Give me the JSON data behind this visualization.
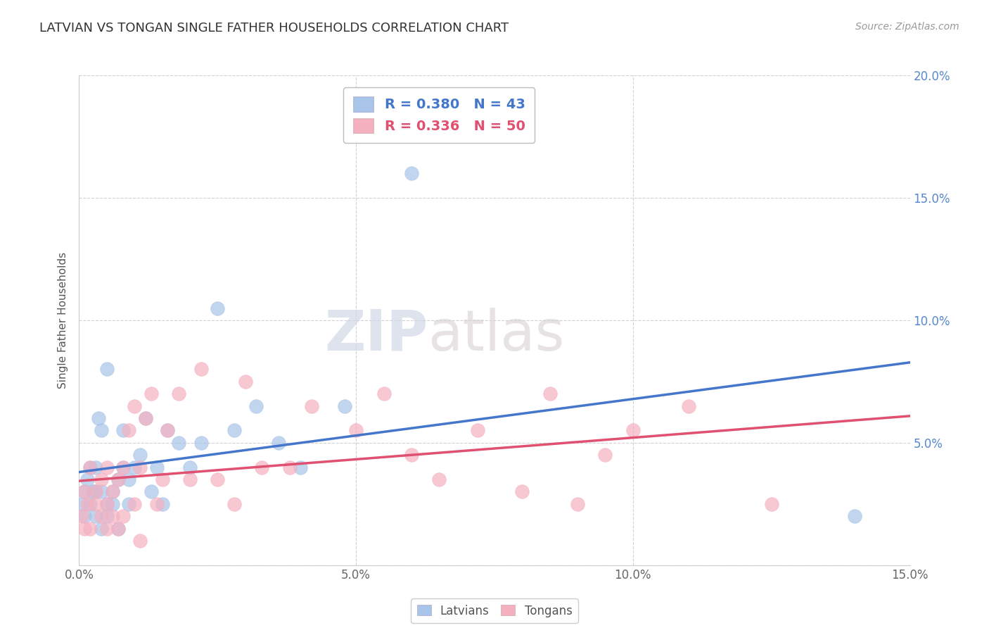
{
  "title": "LATVIAN VS TONGAN SINGLE FATHER HOUSEHOLDS CORRELATION CHART",
  "source_text": "Source: ZipAtlas.com",
  "ylabel": "Single Father Households",
  "xlim": [
    0.0,
    0.15
  ],
  "ylim": [
    0.0,
    0.2
  ],
  "xticks": [
    0.0,
    0.05,
    0.1,
    0.15
  ],
  "xtick_labels": [
    "0.0%",
    "5.0%",
    "10.0%",
    "15.0%"
  ],
  "yticks": [
    0.0,
    0.05,
    0.1,
    0.15,
    0.2
  ],
  "right_ytick_labels": [
    "",
    "5.0%",
    "10.0%",
    "15.0%",
    "20.0%"
  ],
  "latvian_color": "#a8c4e8",
  "tongan_color": "#f5b0c0",
  "latvian_line_color": "#4477cc",
  "tongan_line_color": "#e05070",
  "latvian_R": 0.38,
  "latvian_N": 43,
  "tongan_R": 0.336,
  "tongan_N": 50,
  "legend_latvians": "Latvians",
  "legend_tongans": "Tongans",
  "watermark_zip": "ZIP",
  "watermark_atlas": "atlas",
  "latvian_x": [
    0.0005,
    0.001,
    0.001,
    0.0015,
    0.002,
    0.002,
    0.0025,
    0.003,
    0.003,
    0.003,
    0.0035,
    0.004,
    0.004,
    0.004,
    0.005,
    0.005,
    0.005,
    0.006,
    0.006,
    0.007,
    0.007,
    0.008,
    0.008,
    0.009,
    0.009,
    0.01,
    0.011,
    0.012,
    0.013,
    0.014,
    0.015,
    0.016,
    0.018,
    0.02,
    0.022,
    0.025,
    0.028,
    0.032,
    0.036,
    0.04,
    0.048,
    0.06,
    0.14
  ],
  "latvian_y": [
    0.025,
    0.02,
    0.03,
    0.035,
    0.025,
    0.04,
    0.03,
    0.02,
    0.03,
    0.04,
    0.06,
    0.015,
    0.03,
    0.055,
    0.02,
    0.025,
    0.08,
    0.025,
    0.03,
    0.015,
    0.035,
    0.04,
    0.055,
    0.025,
    0.035,
    0.04,
    0.045,
    0.06,
    0.03,
    0.04,
    0.025,
    0.055,
    0.05,
    0.04,
    0.05,
    0.105,
    0.055,
    0.065,
    0.05,
    0.04,
    0.065,
    0.16,
    0.02
  ],
  "tongan_x": [
    0.0005,
    0.001,
    0.001,
    0.0015,
    0.002,
    0.002,
    0.003,
    0.003,
    0.004,
    0.004,
    0.005,
    0.005,
    0.005,
    0.006,
    0.006,
    0.007,
    0.007,
    0.008,
    0.008,
    0.009,
    0.01,
    0.01,
    0.011,
    0.011,
    0.012,
    0.013,
    0.014,
    0.015,
    0.016,
    0.018,
    0.02,
    0.022,
    0.025,
    0.028,
    0.03,
    0.033,
    0.038,
    0.042,
    0.05,
    0.055,
    0.06,
    0.065,
    0.072,
    0.08,
    0.085,
    0.09,
    0.095,
    0.1,
    0.11,
    0.125
  ],
  "tongan_y": [
    0.02,
    0.015,
    0.03,
    0.025,
    0.015,
    0.04,
    0.025,
    0.03,
    0.02,
    0.035,
    0.015,
    0.025,
    0.04,
    0.02,
    0.03,
    0.015,
    0.035,
    0.02,
    0.04,
    0.055,
    0.025,
    0.065,
    0.01,
    0.04,
    0.06,
    0.07,
    0.025,
    0.035,
    0.055,
    0.07,
    0.035,
    0.08,
    0.035,
    0.025,
    0.075,
    0.04,
    0.04,
    0.065,
    0.055,
    0.07,
    0.045,
    0.035,
    0.055,
    0.03,
    0.07,
    0.025,
    0.045,
    0.055,
    0.065,
    0.025
  ]
}
